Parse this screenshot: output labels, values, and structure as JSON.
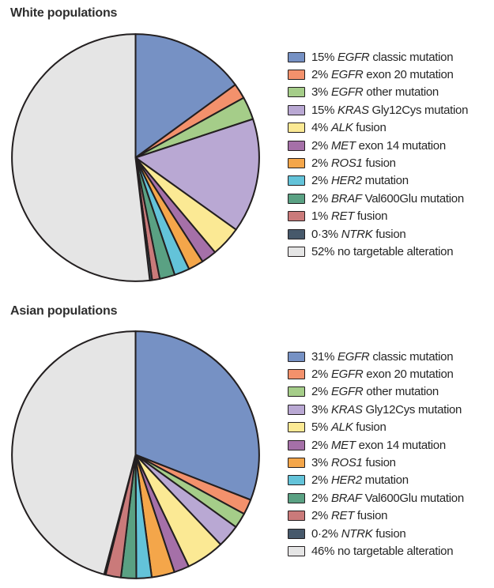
{
  "chart_data": [
    {
      "type": "pie",
      "title": "White populations",
      "legend_position": "right",
      "start_angle": "12-oclock",
      "direction": "clockwise",
      "outline_color": "#231f20",
      "slices": [
        {
          "value": 15,
          "pct": "15%",
          "gene": "EGFR",
          "rest": "classic mutation",
          "color": "#7691c4"
        },
        {
          "value": 2,
          "pct": "2%",
          "gene": "EGFR",
          "rest": "exon 20 mutation",
          "color": "#f3916c"
        },
        {
          "value": 3,
          "pct": "3%",
          "gene": "EGFR",
          "rest": "other mutation",
          "color": "#a5cd89"
        },
        {
          "value": 15,
          "pct": "15%",
          "gene": "KRAS",
          "rest": "Gly12Cys mutation",
          "color": "#b9a8d3"
        },
        {
          "value": 4,
          "pct": "4%",
          "gene": "ALK",
          "rest": "fusion",
          "color": "#fbe994"
        },
        {
          "value": 2,
          "pct": "2%",
          "gene": "MET",
          "rest": "exon 14 mutation",
          "color": "#a570a8"
        },
        {
          "value": 2,
          "pct": "2%",
          "gene": "ROS1",
          "rest": "fusion",
          "color": "#f4a64a"
        },
        {
          "value": 2,
          "pct": "2%",
          "gene": "HER2",
          "rest": "mutation",
          "color": "#63c3d9"
        },
        {
          "value": 2,
          "pct": "2%",
          "gene": "BRAF",
          "rest": "Val600Glu mutation",
          "color": "#5aa183"
        },
        {
          "value": 1,
          "pct": "1%",
          "gene": "RET",
          "rest": "fusion",
          "color": "#ca7a7a"
        },
        {
          "value": 0.3,
          "pct": "0·3%",
          "gene": "NTRK",
          "rest": "fusion",
          "color": "#47596b"
        },
        {
          "value": 52,
          "pct": "52%",
          "gene": "",
          "rest": "no targetable alteration",
          "color": "#e5e5e5"
        }
      ]
    },
    {
      "type": "pie",
      "title": "Asian populations",
      "legend_position": "right",
      "start_angle": "12-oclock",
      "direction": "clockwise",
      "outline_color": "#231f20",
      "slices": [
        {
          "value": 31,
          "pct": "31%",
          "gene": "EGFR",
          "rest": "classic mutation",
          "color": "#7691c4"
        },
        {
          "value": 2,
          "pct": "2%",
          "gene": "EGFR",
          "rest": "exon 20 mutation",
          "color": "#f3916c"
        },
        {
          "value": 2,
          "pct": "2%",
          "gene": "EGFR",
          "rest": "other mutation",
          "color": "#a5cd89"
        },
        {
          "value": 3,
          "pct": "3%",
          "gene": "KRAS",
          "rest": "Gly12Cys mutation",
          "color": "#b9a8d3"
        },
        {
          "value": 5,
          "pct": "5%",
          "gene": "ALK",
          "rest": "fusion",
          "color": "#fbe994"
        },
        {
          "value": 2,
          "pct": "2%",
          "gene": "MET",
          "rest": "exon 14 mutation",
          "color": "#a570a8"
        },
        {
          "value": 3,
          "pct": "3%",
          "gene": "ROS1",
          "rest": "fusion",
          "color": "#f4a64a"
        },
        {
          "value": 2,
          "pct": "2%",
          "gene": "HER2",
          "rest": "mutation",
          "color": "#63c3d9"
        },
        {
          "value": 2,
          "pct": "2%",
          "gene": "BRAF",
          "rest": "Val600Glu mutation",
          "color": "#5aa183"
        },
        {
          "value": 2,
          "pct": "2%",
          "gene": "RET",
          "rest": "fusion",
          "color": "#ca7a7a"
        },
        {
          "value": 0.2,
          "pct": "0·2%",
          "gene": "NTRK",
          "rest": "fusion",
          "color": "#47596b"
        },
        {
          "value": 46,
          "pct": "46%",
          "gene": "",
          "rest": "no targetable alteration",
          "color": "#e5e5e5"
        }
      ]
    }
  ]
}
